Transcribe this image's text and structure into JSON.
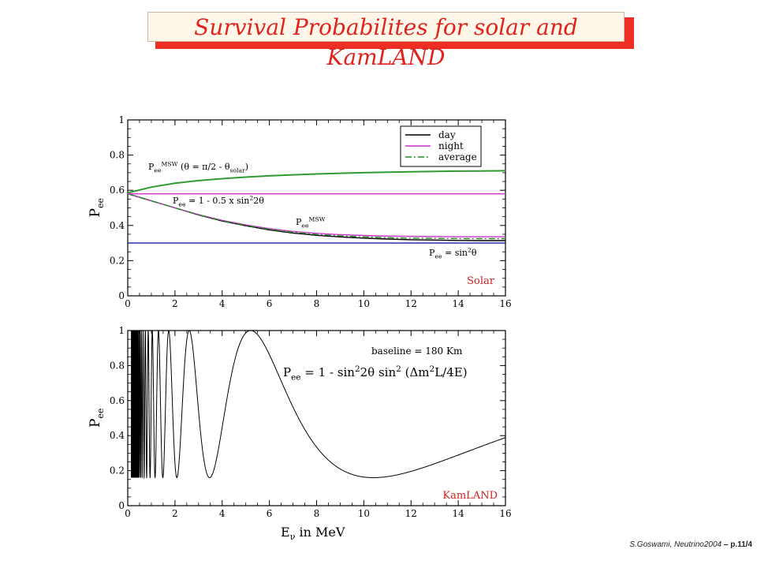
{
  "slide": {
    "title": "Survival Probabilites for solar and KamLAND",
    "footer_author": "S.Goswami, Neutrino2004",
    "footer_page": "– p.11/4"
  },
  "colors": {
    "title": "#e0241c",
    "title_shadow": "#ee2e24",
    "day": "#000000",
    "night": "#cc33cc",
    "average": "#228b22",
    "msw_upper": "#339933",
    "sin2": "#1c1caa",
    "panel_label": "#cc2222"
  },
  "chart_data": [
    {
      "type": "line",
      "panel": "solar",
      "ylabel": "P_ee",
      "xlim": [
        0,
        16
      ],
      "ylim": [
        0,
        1
      ],
      "xticks": [
        0,
        2,
        4,
        6,
        8,
        10,
        12,
        14,
        16
      ],
      "yticks": [
        0,
        0.2,
        0.4,
        0.6,
        0.8,
        1
      ],
      "xtick_labels": [
        "0",
        "2",
        "4",
        "6",
        "8",
        "10",
        "12",
        "14",
        "16"
      ],
      "ytick_labels": [
        "0",
        "0.2",
        "0.4",
        "0.6",
        "0.8",
        "1"
      ],
      "legend": {
        "position": "top-right",
        "entries": [
          "day",
          "night",
          "average"
        ]
      },
      "panel_label": "Solar",
      "annotations": {
        "msw_upper": "P_ee^MSW (θ = π/2 - θ_solar)",
        "averaged": "P_ee = 1 - 0.5 x sin²2θ",
        "msw": "P_ee^MSW",
        "sin2": "P_ee = sin²θ"
      },
      "series": [
        {
          "name": "day",
          "x": [
            0,
            0.5,
            1,
            1.5,
            2,
            3,
            4,
            5,
            6,
            7,
            8,
            9,
            10,
            11,
            12,
            13,
            14,
            15,
            16
          ],
          "values": [
            0.58,
            0.56,
            0.54,
            0.52,
            0.5,
            0.46,
            0.425,
            0.398,
            0.375,
            0.357,
            0.344,
            0.335,
            0.328,
            0.323,
            0.319,
            0.317,
            0.315,
            0.314,
            0.314
          ]
        },
        {
          "name": "night",
          "x": [
            0,
            0.5,
            1,
            1.5,
            2,
            3,
            4,
            5,
            6,
            7,
            8,
            9,
            10,
            11,
            12,
            13,
            14,
            15,
            16
          ],
          "values": [
            0.58,
            0.56,
            0.54,
            0.52,
            0.5,
            0.462,
            0.429,
            0.403,
            0.382,
            0.366,
            0.355,
            0.348,
            0.343,
            0.34,
            0.338,
            0.337,
            0.336,
            0.336,
            0.336
          ]
        },
        {
          "name": "average",
          "x": [
            0,
            0.5,
            1,
            1.5,
            2,
            3,
            4,
            5,
            6,
            7,
            8,
            9,
            10,
            11,
            12,
            13,
            14,
            15,
            16
          ],
          "values": [
            0.58,
            0.56,
            0.54,
            0.52,
            0.5,
            0.461,
            0.427,
            0.4,
            0.378,
            0.361,
            0.349,
            0.341,
            0.335,
            0.331,
            0.328,
            0.327,
            0.325,
            0.325,
            0.325
          ]
        },
        {
          "name": "",
          "x": [
            0,
            1,
            2,
            3,
            4,
            5,
            6,
            7,
            8,
            9,
            10,
            11,
            12,
            13,
            14,
            15,
            16
          ],
          "values": [
            0.585,
            0.618,
            0.64,
            0.655,
            0.666,
            0.675,
            0.682,
            0.688,
            0.693,
            0.697,
            0.7,
            0.703,
            0.705,
            0.707,
            0.709,
            0.71,
            0.711
          ]
        },
        {
          "name": "",
          "x": [
            0,
            16
          ],
          "values": [
            0.58,
            0.58
          ]
        },
        {
          "name": "",
          "x": [
            0,
            16
          ],
          "values": [
            0.3,
            0.3
          ]
        }
      ]
    },
    {
      "type": "line",
      "panel": "kamland",
      "ylabel": "P_ee",
      "xlabel": "E_ν in MeV",
      "xlim": [
        0,
        16
      ],
      "ylim": [
        0,
        1
      ],
      "xticks": [
        0,
        2,
        4,
        6,
        8,
        10,
        12,
        14,
        16
      ],
      "yticks": [
        0,
        0.2,
        0.4,
        0.6,
        0.8,
        1
      ],
      "xtick_labels": [
        "0",
        "2",
        "4",
        "6",
        "8",
        "10",
        "12",
        "14",
        "16"
      ],
      "ytick_labels": [
        "0",
        "0.2",
        "0.4",
        "0.6",
        "0.8",
        "1"
      ],
      "panel_label": "KamLAND",
      "annotations": {
        "baseline": "baseline = 180 Km",
        "formula": "P_ee = 1 - sin²2θ sin² (Δm²L/4E)"
      },
      "curve": {
        "function": "1 - A sin^2(k/E)",
        "A": 0.84,
        "k": 16.35,
        "E_min": 0.15,
        "E_max": 16
      }
    }
  ]
}
